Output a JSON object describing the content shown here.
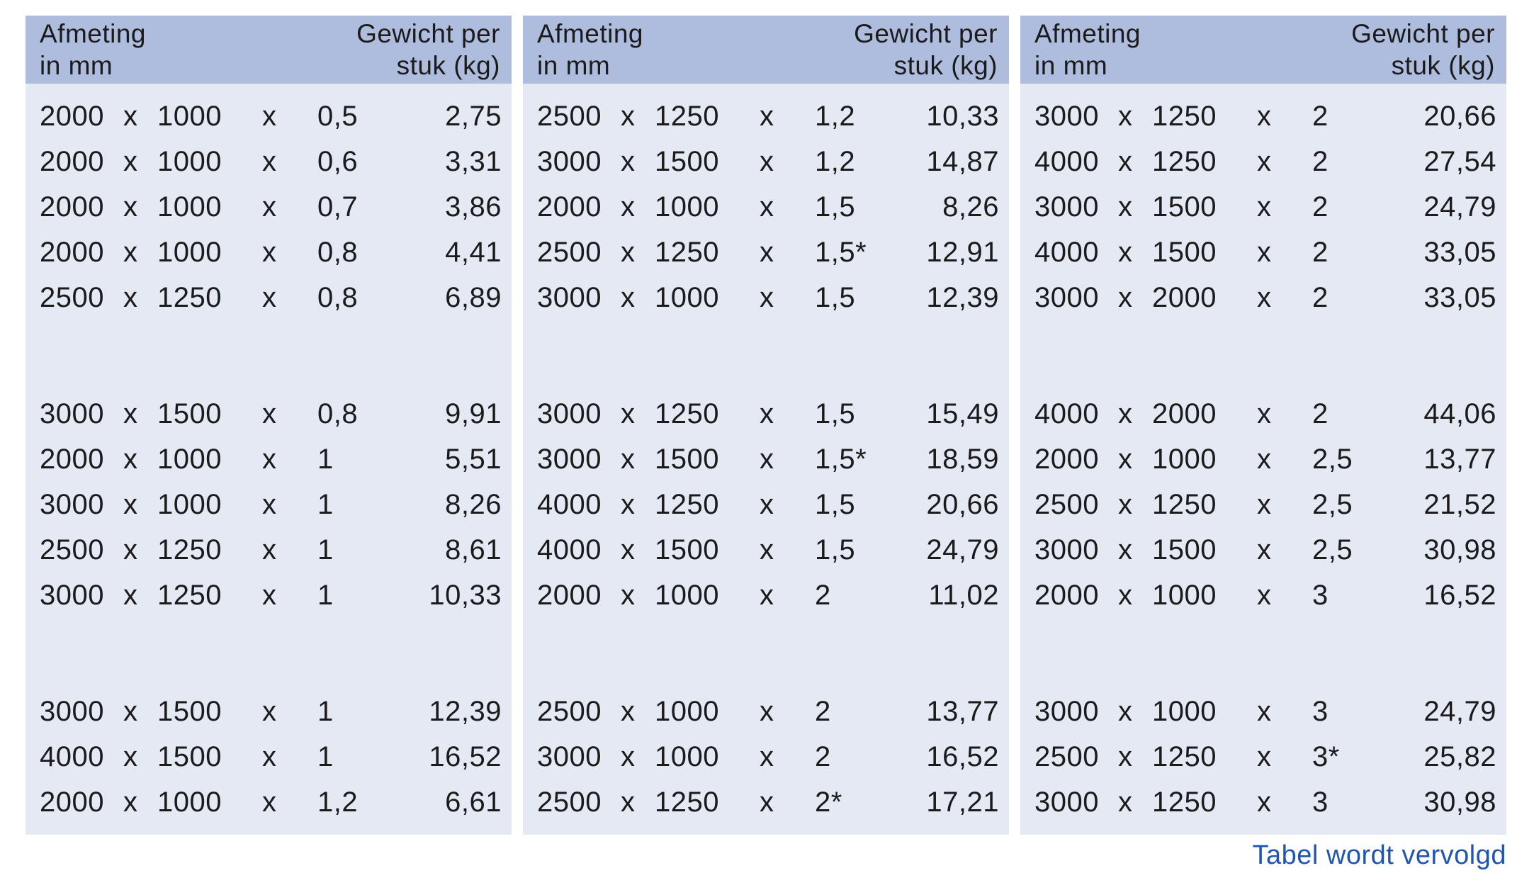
{
  "header": {
    "dimension_line1": "Afmeting",
    "dimension_line2": "in mm",
    "weight_line1": "Gewicht per",
    "weight_line2": "stuk (kg)"
  },
  "separator": "x",
  "footer": {
    "note": "Tabel wordt vervolgd"
  },
  "colors": {
    "header_bg": "#aebcde",
    "body_bg": "#e4e9f4",
    "text": "#1b1b1b",
    "footer_link": "#2155ae"
  },
  "tables": [
    {
      "groups": [
        {
          "rows": [
            {
              "w": "2000",
              "h": "1000",
              "t": "0,5",
              "kg": "2,75"
            },
            {
              "w": "2000",
              "h": "1000",
              "t": "0,6",
              "kg": "3,31"
            },
            {
              "w": "2000",
              "h": "1000",
              "t": "0,7",
              "kg": "3,86"
            },
            {
              "w": "2000",
              "h": "1000",
              "t": "0,8",
              "kg": "4,41"
            },
            {
              "w": "2500",
              "h": "1250",
              "t": "0,8",
              "kg": "6,89"
            }
          ]
        },
        {
          "rows": [
            {
              "w": "3000",
              "h": "1500",
              "t": "0,8",
              "kg": "9,91"
            },
            {
              "w": "2000",
              "h": "1000",
              "t": "1",
              "kg": "5,51"
            },
            {
              "w": "3000",
              "h": "1000",
              "t": "1",
              "kg": "8,26"
            },
            {
              "w": "2500",
              "h": "1250",
              "t": "1",
              "kg": "8,61"
            },
            {
              "w": "3000",
              "h": "1250",
              "t": "1",
              "kg": "10,33"
            }
          ]
        },
        {
          "rows": [
            {
              "w": "3000",
              "h": "1500",
              "t": "1",
              "kg": "12,39"
            },
            {
              "w": "4000",
              "h": "1500",
              "t": "1",
              "kg": "16,52"
            },
            {
              "w": "2000",
              "h": "1000",
              "t": "1,2",
              "kg": "6,61"
            }
          ]
        }
      ]
    },
    {
      "groups": [
        {
          "rows": [
            {
              "w": "2500",
              "h": "1250",
              "t": "1,2",
              "kg": "10,33"
            },
            {
              "w": "3000",
              "h": "1500",
              "t": "1,2",
              "kg": "14,87"
            },
            {
              "w": "2000",
              "h": "1000",
              "t": "1,5",
              "kg": "8,26"
            },
            {
              "w": "2500",
              "h": "1250",
              "t": "1,5*",
              "kg": "12,91"
            },
            {
              "w": "3000",
              "h": "1000",
              "t": "1,5",
              "kg": "12,39"
            }
          ]
        },
        {
          "rows": [
            {
              "w": "3000",
              "h": "1250",
              "t": "1,5",
              "kg": "15,49"
            },
            {
              "w": "3000",
              "h": "1500",
              "t": "1,5*",
              "kg": "18,59"
            },
            {
              "w": "4000",
              "h": "1250",
              "t": "1,5",
              "kg": "20,66"
            },
            {
              "w": "4000",
              "h": "1500",
              "t": "1,5",
              "kg": "24,79"
            },
            {
              "w": "2000",
              "h": "1000",
              "t": "2",
              "kg": "11,02"
            }
          ]
        },
        {
          "rows": [
            {
              "w": "2500",
              "h": "1000",
              "t": "2",
              "kg": "13,77"
            },
            {
              "w": "3000",
              "h": "1000",
              "t": "2",
              "kg": "16,52"
            },
            {
              "w": "2500",
              "h": "1250",
              "t": "2*",
              "kg": "17,21"
            }
          ]
        }
      ]
    },
    {
      "groups": [
        {
          "rows": [
            {
              "w": "3000",
              "h": "1250",
              "t": "2",
              "kg": "20,66"
            },
            {
              "w": "4000",
              "h": "1250",
              "t": "2",
              "kg": "27,54"
            },
            {
              "w": "3000",
              "h": "1500",
              "t": "2",
              "kg": "24,79"
            },
            {
              "w": "4000",
              "h": "1500",
              "t": "2",
              "kg": "33,05"
            },
            {
              "w": "3000",
              "h": "2000",
              "t": "2",
              "kg": "33,05"
            }
          ]
        },
        {
          "rows": [
            {
              "w": "4000",
              "h": "2000",
              "t": "2",
              "kg": "44,06"
            },
            {
              "w": "2000",
              "h": "1000",
              "t": "2,5",
              "kg": "13,77"
            },
            {
              "w": "2500",
              "h": "1250",
              "t": "2,5",
              "kg": "21,52"
            },
            {
              "w": "3000",
              "h": "1500",
              "t": "2,5",
              "kg": "30,98"
            },
            {
              "w": "2000",
              "h": "1000",
              "t": "3",
              "kg": "16,52"
            }
          ]
        },
        {
          "rows": [
            {
              "w": "3000",
              "h": "1000",
              "t": "3",
              "kg": "24,79"
            },
            {
              "w": "2500",
              "h": "1250",
              "t": "3*",
              "kg": "25,82"
            },
            {
              "w": "3000",
              "h": "1250",
              "t": "3",
              "kg": "30,98"
            }
          ]
        }
      ]
    }
  ]
}
